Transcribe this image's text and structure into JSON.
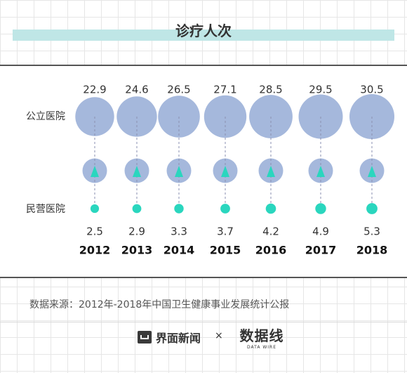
{
  "title": "诊疗人次",
  "source": "数据来源：2012年-2018年中国卫生健康事业发展统计公报",
  "colors": {
    "public": "#a5b8dc",
    "private": "#2ad6be",
    "title_bar": "#bfe6e6"
  },
  "logos": {
    "jiemian": "界面新闻",
    "times": "×",
    "datawire": "数据线",
    "datawire_sub": "DATA WIRE"
  },
  "chart_data": {
    "type": "bubble",
    "categories": [
      "2012",
      "2013",
      "2014",
      "2015",
      "2016",
      "2017",
      "2018"
    ],
    "series": [
      {
        "name": "公立医院",
        "values": [
          22.9,
          24.6,
          26.5,
          27.1,
          28.5,
          29.5,
          30.5
        ]
      },
      {
        "name": "民营医院",
        "values": [
          2.5,
          2.9,
          3.3,
          3.7,
          4.2,
          4.9,
          5.3
        ]
      }
    ],
    "labels": {
      "public": [
        "22.9",
        "24.6",
        "26.5",
        "27.1",
        "28.5",
        "29.5",
        "30.5"
      ],
      "private": [
        "2.5",
        "2.9",
        "3.3",
        "3.7",
        "4.2",
        "4.9",
        "5.3"
      ]
    }
  }
}
